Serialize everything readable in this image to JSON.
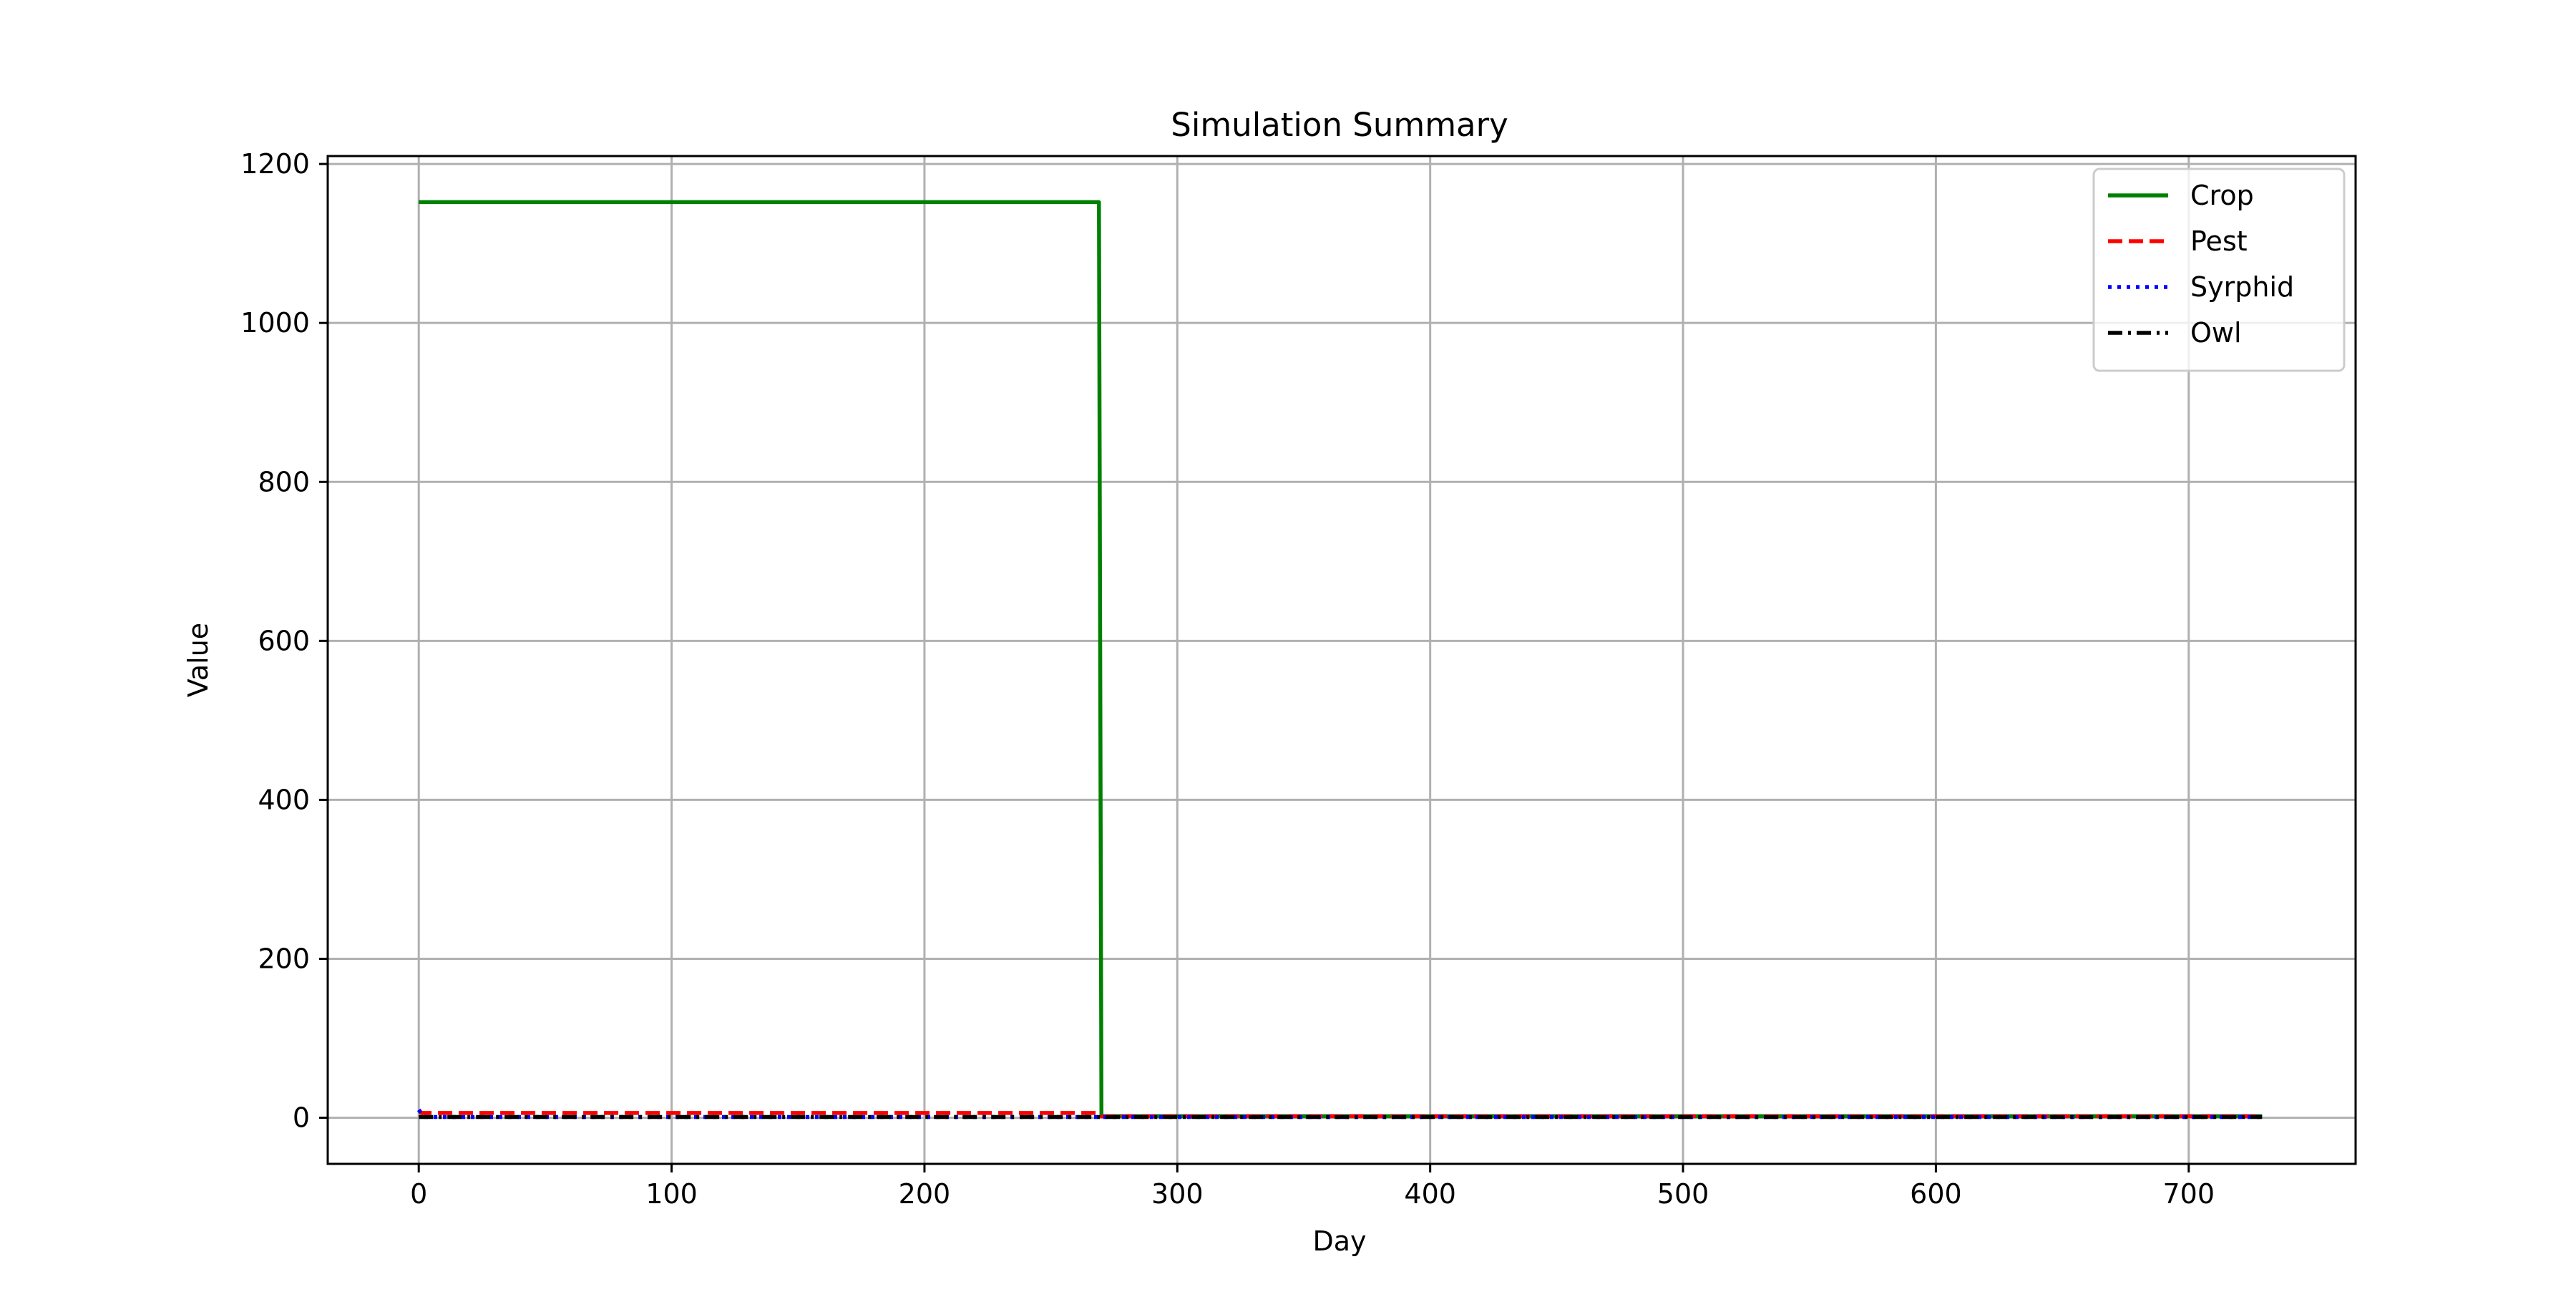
{
  "chart_data": {
    "type": "line",
    "title": "Simulation Summary",
    "xlabel": "Day",
    "ylabel": "Value",
    "xlim": [
      -36,
      766
    ],
    "ylim": [
      -58,
      1210
    ],
    "xticks": [
      0,
      100,
      200,
      300,
      400,
      500,
      600,
      700
    ],
    "yticks": [
      0,
      200,
      400,
      600,
      800,
      1000,
      1200
    ],
    "grid": true,
    "legend_position": "top-right",
    "series": [
      {
        "name": "Crop",
        "color": "#008000",
        "style": "solid",
        "x": [
          0,
          269,
          270,
          729
        ],
        "y": [
          1152,
          1152,
          2,
          2
        ]
      },
      {
        "name": "Pest",
        "color": "#ff0000",
        "style": "dashed",
        "x": [
          0,
          1,
          269,
          270,
          729
        ],
        "y": [
          10,
          6,
          6,
          2,
          2
        ]
      },
      {
        "name": "Syrphid",
        "color": "#0000ff",
        "style": "dotted",
        "x": [
          0,
          2,
          729
        ],
        "y": [
          10,
          1,
          1
        ]
      },
      {
        "name": "Owl",
        "color": "#000000",
        "style": "dashdot",
        "x": [
          0,
          729
        ],
        "y": [
          1,
          1
        ]
      }
    ]
  }
}
